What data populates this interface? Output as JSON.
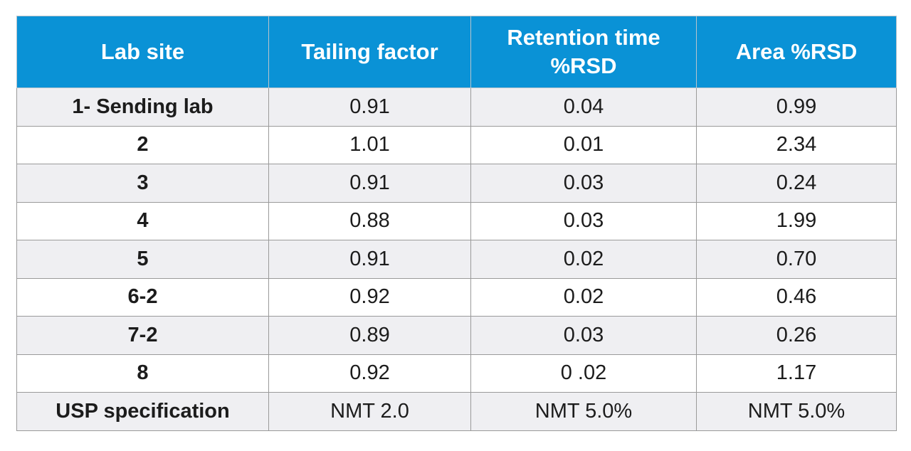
{
  "table": {
    "headers": [
      "Lab site",
      "Tailing factor",
      "Retention time %RSD",
      "Area %RSD"
    ],
    "rows": [
      [
        "1- Sending lab",
        "0.91",
        "0.04",
        "0.99"
      ],
      [
        "2",
        "1.01",
        "0.01",
        "2.34"
      ],
      [
        "3",
        "0.91",
        "0.03",
        "0.24"
      ],
      [
        "4",
        "0.88",
        "0.03",
        "1.99"
      ],
      [
        "5",
        "0.91",
        "0.02",
        "0.70"
      ],
      [
        "6-2",
        "0.92",
        "0.02",
        "0.46"
      ],
      [
        "7-2",
        "0.89",
        "0.03",
        "0.26"
      ],
      [
        "8",
        "0.92",
        "0 .02",
        "1.17"
      ],
      [
        "USP specification",
        "NMT 2.0",
        "NMT 5.0%",
        "NMT 5.0%"
      ]
    ]
  },
  "colors": {
    "header_bg": "#0a92d6",
    "header_text": "#ffffff",
    "shaded_row": "#efeff2",
    "border": "#9a9a9a"
  }
}
